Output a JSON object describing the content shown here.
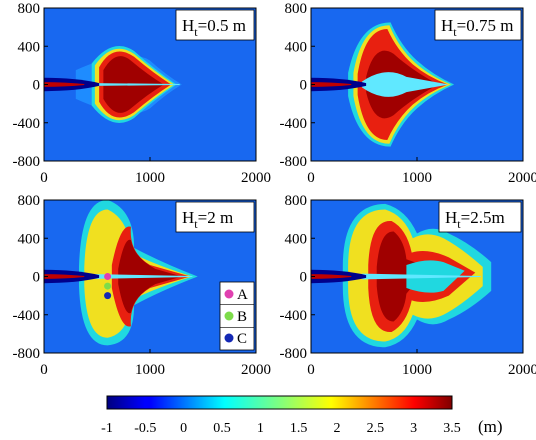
{
  "chart_data": {
    "type": "heatmap",
    "colormap": "jet",
    "color_range": [
      -1,
      3.5
    ],
    "colorbar": {
      "ticks": [
        "-1",
        "-0.5",
        "0",
        "0.5",
        "1",
        "1.5",
        "2",
        "2.5",
        "3",
        "3.5"
      ],
      "unit": "(m)"
    },
    "x_range": [
      0,
      2000
    ],
    "y_range": [
      -800,
      800
    ],
    "x_ticks": [
      "0",
      "1000",
      "2000"
    ],
    "y_ticks": [
      "800",
      "400",
      "0",
      "-400",
      "-800"
    ],
    "panels": [
      {
        "label_main": "H",
        "label_sub": "t",
        "label_rest": "=0.5 m",
        "shape": 0
      },
      {
        "label_main": "H",
        "label_sub": "t",
        "label_rest": "=0.75 m",
        "shape": 1
      },
      {
        "label_main": "H",
        "label_sub": "t",
        "label_rest": "=2 m",
        "shape": 2
      },
      {
        "label_main": "H",
        "label_sub": "t",
        "label_rest": "=2.5m",
        "shape": 3
      }
    ],
    "points": [
      {
        "name": "A",
        "color": "#e040b0",
        "x": 600,
        "y": 0
      },
      {
        "name": "B",
        "color": "#7ddc4a",
        "x": 600,
        "y": -100
      },
      {
        "name": "C",
        "color": "#1428b4",
        "x": 600,
        "y": -200
      }
    ]
  }
}
